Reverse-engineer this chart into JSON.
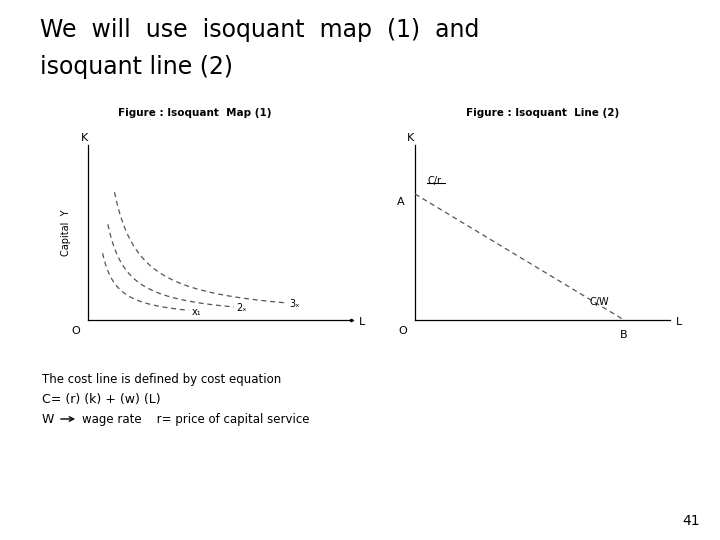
{
  "title_line1": "We  will  use  isoquant  map  (1)  and",
  "title_line2": "isoquant line (2)",
  "fig1_title": "Figure : Isoquant  Map (1)",
  "fig2_title": "Figure : Isoquant  Line (2)",
  "bg_color": "#ffffff",
  "text_color": "#000000",
  "bottom_text1": "The cost line is defined by cost equation",
  "bottom_text2": "C= (r) (k) + (w) (L)",
  "bottom_text3": "W",
  "bottom_text3b": "wage rate    r= price of capital service",
  "page_number": "41",
  "label_K1": "K",
  "label_O1": "O",
  "label_L1": "L",
  "label_CapY": "Capital  Y",
  "label_x1": "x₁",
  "label_2x": "2ₓ",
  "label_3x": "3ₓ",
  "label_K2": "K",
  "label_O2": "O",
  "label_L2": "L",
  "label_A": "A",
  "label_B": "B",
  "label_Cr": "C/r",
  "label_Cw": "C/W"
}
